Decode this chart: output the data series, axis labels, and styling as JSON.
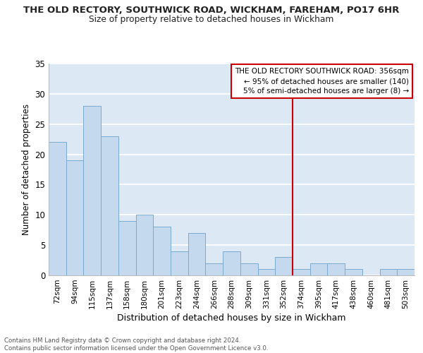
{
  "title": "THE OLD RECTORY, SOUTHWICK ROAD, WICKHAM, FAREHAM, PO17 6HR",
  "subtitle": "Size of property relative to detached houses in Wickham",
  "xlabel": "Distribution of detached houses by size in Wickham",
  "ylabel": "Number of detached properties",
  "categories": [
    "72sqm",
    "94sqm",
    "115sqm",
    "137sqm",
    "158sqm",
    "180sqm",
    "201sqm",
    "223sqm",
    "244sqm",
    "266sqm",
    "288sqm",
    "309sqm",
    "331sqm",
    "352sqm",
    "374sqm",
    "395sqm",
    "417sqm",
    "438sqm",
    "460sqm",
    "481sqm",
    "503sqm"
  ],
  "values": [
    22,
    19,
    28,
    23,
    9,
    10,
    8,
    4,
    7,
    2,
    4,
    2,
    1,
    3,
    1,
    2,
    2,
    1,
    0,
    1,
    1
  ],
  "bar_color": "#c5d9ee",
  "bar_edge_color": "#7aaace",
  "background_color": "#dde8f5",
  "grid_color": "#ffffff",
  "annotation_line_color": "#cc0000",
  "annotation_box_text": "THE OLD RECTORY SOUTHWICK ROAD: 356sqm\n← 95% of detached houses are smaller (140)\n5% of semi-detached houses are larger (8) →",
  "ylim": [
    0,
    35
  ],
  "yticks": [
    0,
    5,
    10,
    15,
    20,
    25,
    30,
    35
  ],
  "footer_line1": "Contains HM Land Registry data © Crown copyright and database right 2024.",
  "footer_line2": "Contains public sector information licensed under the Open Government Licence v3.0."
}
